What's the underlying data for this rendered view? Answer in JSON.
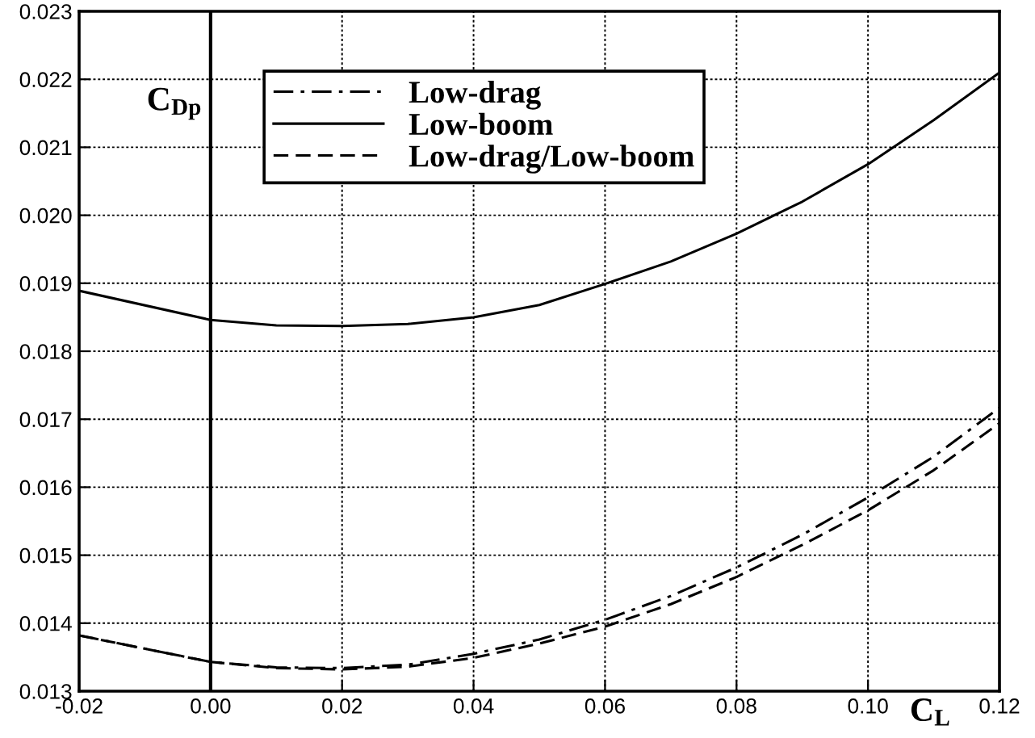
{
  "chart_data": {
    "type": "line",
    "xlabel": "C$_{L}$",
    "ylabel": "C$_{Dp}$",
    "x": [
      -0.02,
      0.0,
      0.01,
      0.02,
      0.03,
      0.04,
      0.05,
      0.06,
      0.07,
      0.08,
      0.09,
      0.1,
      0.11,
      0.12
    ],
    "series": [
      {
        "name": "Low-drag",
        "color": "#000000",
        "line_style": "dashdot",
        "values": [
          0.01382,
          0.01343,
          0.01335,
          0.01334,
          0.01339,
          0.01355,
          0.01376,
          0.01405,
          0.0144,
          0.01482,
          0.0153,
          0.01585,
          0.01645,
          0.01717
        ]
      },
      {
        "name": "Low-boom",
        "color": "#000000",
        "line_style": "solid",
        "values": [
          0.01889,
          0.01846,
          0.01838,
          0.01837,
          0.0184,
          0.0185,
          0.01868,
          0.01899,
          0.01932,
          0.01973,
          0.0202,
          0.02075,
          0.0214,
          0.0221
        ]
      },
      {
        "name": "Low-drag/Low-boom",
        "color": "#000000",
        "line_style": "dashed",
        "values": [
          0.01382,
          0.01343,
          0.01334,
          0.01332,
          0.01336,
          0.01349,
          0.0137,
          0.01395,
          0.01428,
          0.01468,
          0.01515,
          0.01566,
          0.01625,
          0.01694
        ]
      }
    ],
    "xlim": [
      -0.02,
      0.12
    ],
    "ylim": [
      0.013,
      0.023
    ],
    "xticks": [
      {
        "value": -0.02,
        "label": "-0.02"
      },
      {
        "value": 0.0,
        "label": "0.00"
      },
      0.02,
      0.04,
      0.06,
      0.08,
      {
        "value": 0.1,
        "label": "0.10"
      },
      0.12
    ],
    "yticks": [
      0.013,
      0.014,
      0.015,
      0.016,
      0.017,
      0.018,
      0.019,
      {
        "value": 0.02,
        "label": "0.020"
      },
      0.021,
      0.022,
      0.023
    ],
    "ref_lines": [
      {
        "axis": "x",
        "value": 0.0,
        "color": "#000000",
        "line_style": "solid"
      }
    ],
    "grid": true,
    "legend": "top"
  }
}
